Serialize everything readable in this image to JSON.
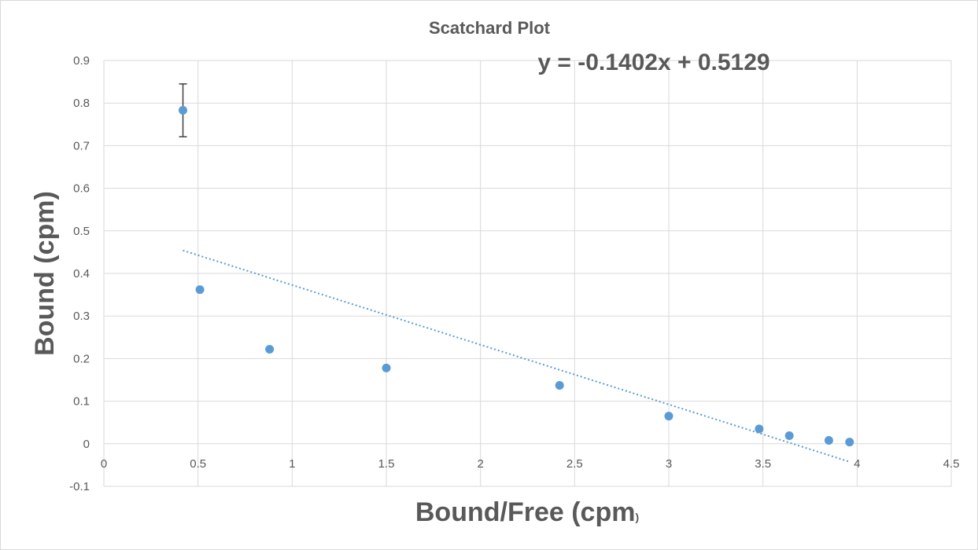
{
  "chart_data": {
    "type": "scatter",
    "title": "Scatchard Plot",
    "xlabel": "Bound/Free (cpm",
    "xlabel_suffix": ")",
    "ylabel": "Bound (cpm)",
    "xlim": [
      0,
      4.5
    ],
    "ylim": [
      -0.1,
      0.9
    ],
    "x_ticks": [
      0,
      0.5,
      1,
      1.5,
      2,
      2.5,
      3,
      3.5,
      4,
      4.5
    ],
    "y_ticks": [
      -0.1,
      0,
      0.1,
      0.2,
      0.3,
      0.4,
      0.5,
      0.6,
      0.7,
      0.8,
      0.9
    ],
    "grid": true,
    "series": [
      {
        "color": "#5b9bd5",
        "points": [
          {
            "x": 0.42,
            "y": 0.783,
            "err": 0.062
          },
          {
            "x": 0.51,
            "y": 0.362
          },
          {
            "x": 0.88,
            "y": 0.222
          },
          {
            "x": 1.5,
            "y": 0.178
          },
          {
            "x": 2.42,
            "y": 0.137
          },
          {
            "x": 3.0,
            "y": 0.065
          },
          {
            "x": 3.48,
            "y": 0.035
          },
          {
            "x": 3.64,
            "y": 0.019
          },
          {
            "x": 3.85,
            "y": 0.008
          },
          {
            "x": 3.96,
            "y": 0.004
          }
        ]
      }
    ],
    "trendline": {
      "type": "linear",
      "slope": -0.1402,
      "intercept": 0.5129,
      "x_range": [
        0.42,
        3.96
      ],
      "color": "#5b9bd5",
      "style": "dotted",
      "equation_label": "y = -0.1402x + 0.5129"
    },
    "colors": {
      "grid": "#d9d9d9",
      "text": "#595959",
      "error_bar": "#404040"
    }
  }
}
